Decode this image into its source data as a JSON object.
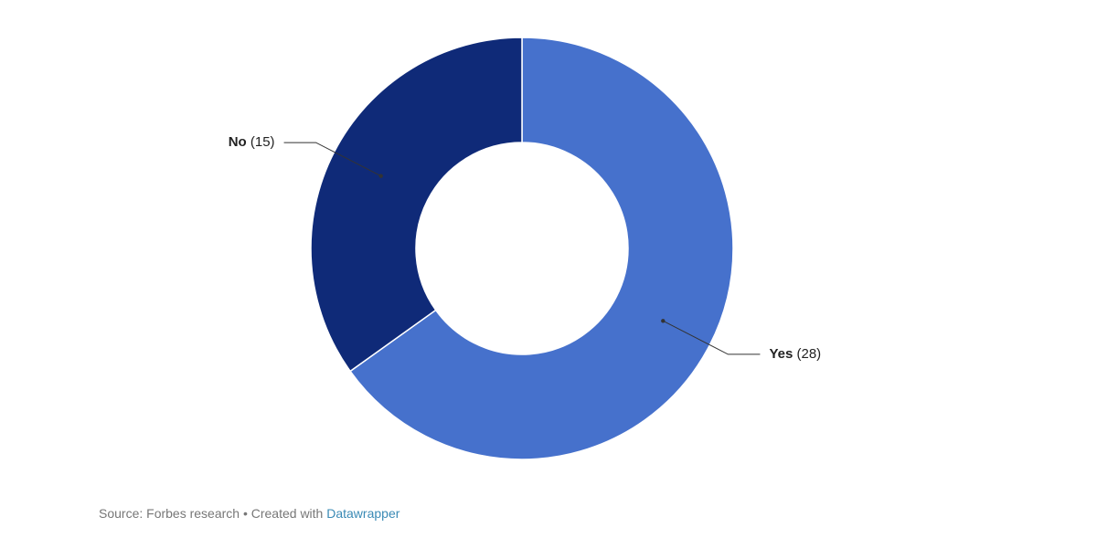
{
  "chart_data": {
    "type": "donut",
    "categories": [
      "Yes",
      "No"
    ],
    "values": [
      28,
      15
    ],
    "value_labels": [
      "(28)",
      "(15)"
    ],
    "colors": [
      "#4671cc",
      "#0f2a78"
    ],
    "source": "Source: Forbes research • Created with",
    "credit": "Datawrapper"
  }
}
